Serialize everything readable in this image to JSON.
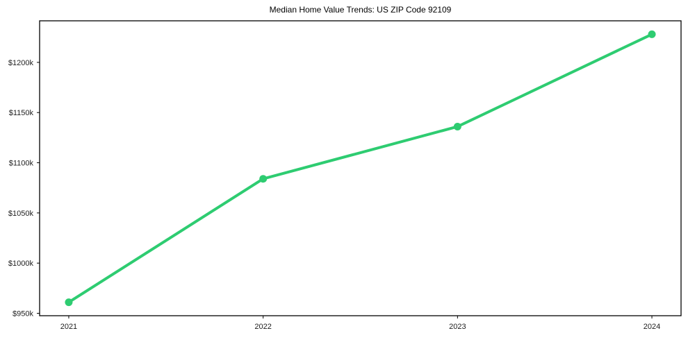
{
  "chart_data": {
    "type": "line",
    "title": "Median Home Value Trends: US ZIP Code 92109",
    "categories": [
      "2021",
      "2022",
      "2023",
      "2024"
    ],
    "series": [
      {
        "name": "Median Home Value",
        "values": [
          961,
          1084,
          1136,
          1228
        ],
        "color": "#2ecc71"
      }
    ],
    "value_unit": "thousand USD",
    "ytick_values": [
      950,
      1000,
      1050,
      1100,
      1150,
      1200
    ],
    "ytick_labels": [
      "$950k",
      "$1000k",
      "$1050k",
      "$1100k",
      "$1150k",
      "$1200k"
    ],
    "ylim": [
      947.6,
      1241.4
    ],
    "x_padding_fraction": 0.15,
    "xlabel": "",
    "ylabel": "",
    "grid": false,
    "legend_position": "none",
    "marker": "circle",
    "marker_radius": 5.5,
    "line_width": 4,
    "axis_color": "#000000",
    "tick_text_color": "#1c1c1c",
    "background": "#ffffff"
  }
}
